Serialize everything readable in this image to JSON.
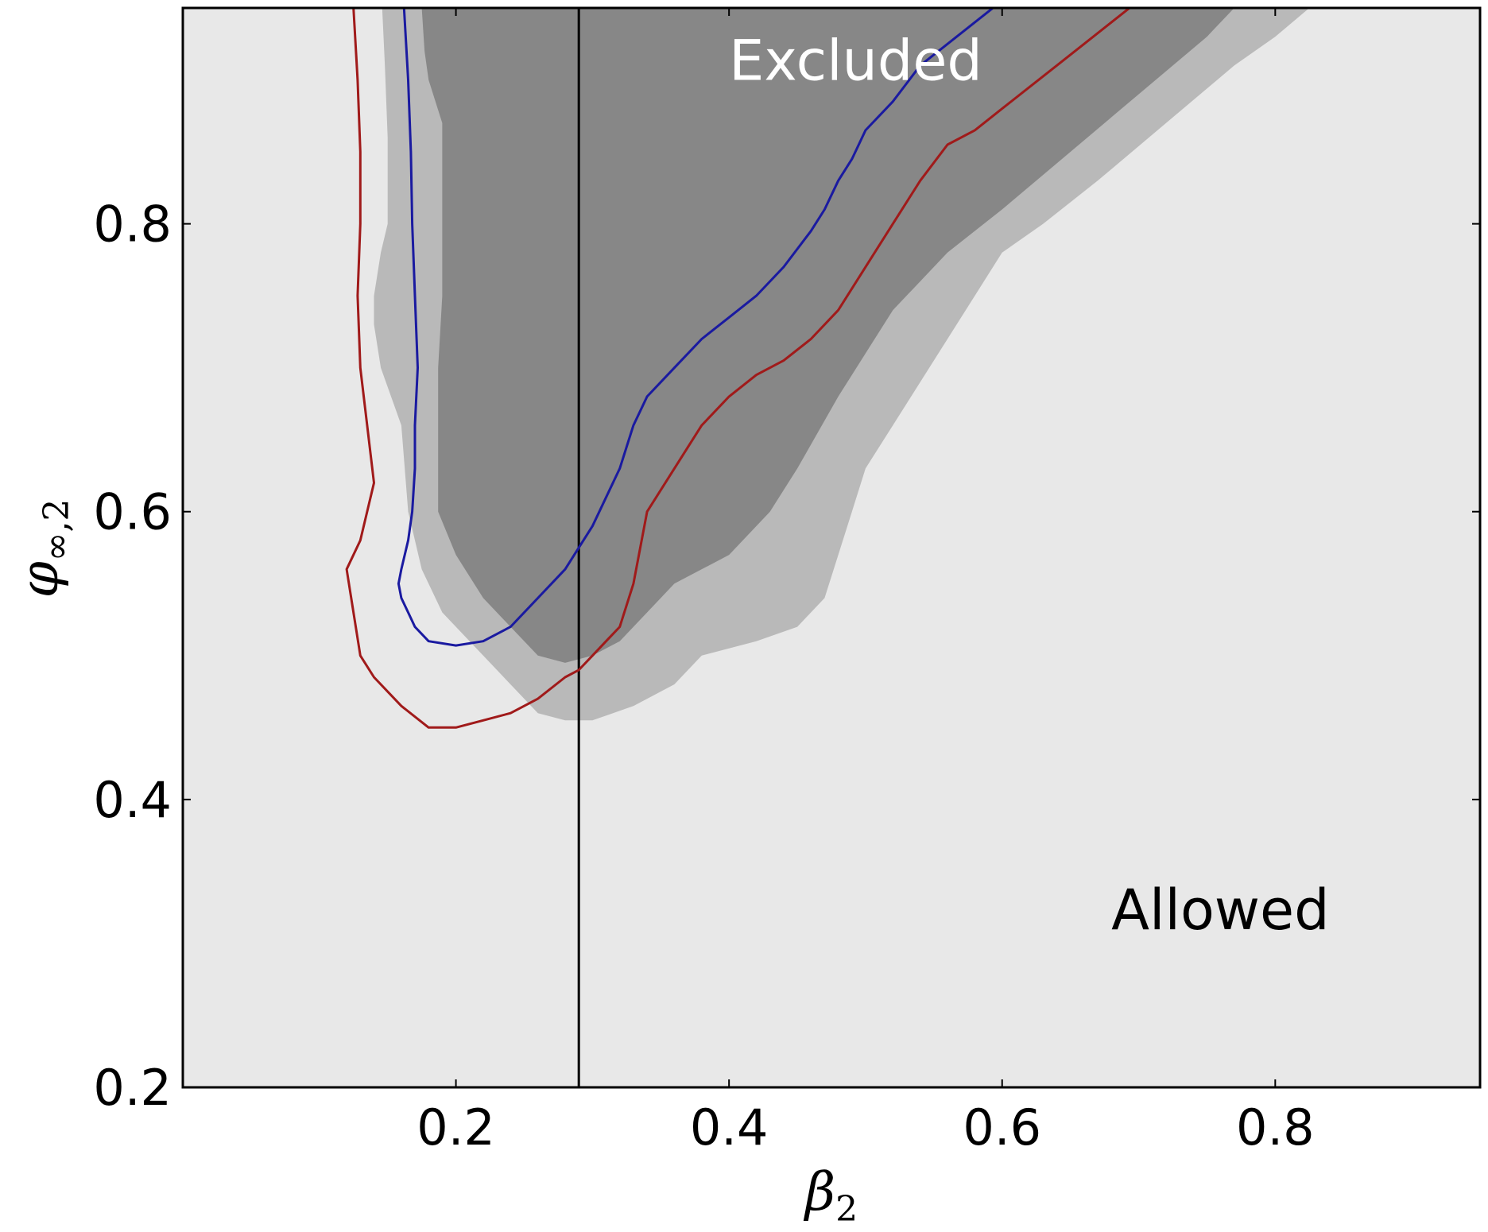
{
  "chart_data": {
    "type": "area",
    "title": "",
    "xlabel": {
      "symbol": "β",
      "subscript": "2"
    },
    "ylabel": {
      "symbol": "φ",
      "subscript": "∞,2"
    },
    "xlim": [
      0.0,
      0.95
    ],
    "ylim": [
      0.2,
      0.95
    ],
    "xticks": [
      0.2,
      0.4,
      0.6,
      0.8
    ],
    "yticks": [
      0.2,
      0.4,
      0.6,
      0.8
    ],
    "xtick_labels": [
      "0.2",
      "0.4",
      "0.6",
      "0.8"
    ],
    "ytick_labels": [
      "0.2",
      "0.4",
      "0.6",
      "0.8"
    ],
    "grid": false,
    "legend": "none",
    "colors": {
      "background": "#e8e8e8",
      "light_region": "#b9b9b9",
      "dark_region": "#878787",
      "blue_contour": "#1a1aa0",
      "red_contour": "#a01a1a",
      "vertical_line": "#000000"
    },
    "vertical_line_x": 0.29,
    "annotations": [
      {
        "text": "Excluded",
        "x": 0.4,
        "y": 0.9,
        "color": "#ffffff"
      },
      {
        "text": "Allowed",
        "x": 0.68,
        "y": 0.31,
        "color": "#000000"
      }
    ],
    "regions": [
      {
        "name": "light",
        "points": [
          [
            0.146,
            0.95
          ],
          [
            0.148,
            0.91
          ],
          [
            0.15,
            0.86
          ],
          [
            0.15,
            0.8
          ],
          [
            0.145,
            0.78
          ],
          [
            0.14,
            0.75
          ],
          [
            0.14,
            0.73
          ],
          [
            0.145,
            0.7
          ],
          [
            0.16,
            0.66
          ],
          [
            0.165,
            0.6
          ],
          [
            0.175,
            0.56
          ],
          [
            0.19,
            0.53
          ],
          [
            0.21,
            0.51
          ],
          [
            0.23,
            0.49
          ],
          [
            0.26,
            0.46
          ],
          [
            0.28,
            0.455
          ],
          [
            0.3,
            0.455
          ],
          [
            0.33,
            0.465
          ],
          [
            0.36,
            0.48
          ],
          [
            0.38,
            0.5
          ],
          [
            0.42,
            0.51
          ],
          [
            0.45,
            0.52
          ],
          [
            0.47,
            0.54
          ],
          [
            0.48,
            0.57
          ],
          [
            0.49,
            0.6
          ],
          [
            0.5,
            0.63
          ],
          [
            0.52,
            0.66
          ],
          [
            0.54,
            0.69
          ],
          [
            0.56,
            0.72
          ],
          [
            0.58,
            0.75
          ],
          [
            0.6,
            0.78
          ],
          [
            0.63,
            0.8
          ],
          [
            0.67,
            0.83
          ],
          [
            0.72,
            0.87
          ],
          [
            0.77,
            0.91
          ],
          [
            0.8,
            0.93
          ],
          [
            0.825,
            0.95
          ]
        ]
      },
      {
        "name": "dark",
        "points": [
          [
            0.175,
            0.95
          ],
          [
            0.177,
            0.92
          ],
          [
            0.18,
            0.9
          ],
          [
            0.19,
            0.87
          ],
          [
            0.19,
            0.8
          ],
          [
            0.19,
            0.75
          ],
          [
            0.187,
            0.7
          ],
          [
            0.187,
            0.65
          ],
          [
            0.187,
            0.6
          ],
          [
            0.2,
            0.57
          ],
          [
            0.22,
            0.54
          ],
          [
            0.24,
            0.52
          ],
          [
            0.26,
            0.5
          ],
          [
            0.28,
            0.495
          ],
          [
            0.3,
            0.5
          ],
          [
            0.32,
            0.51
          ],
          [
            0.34,
            0.53
          ],
          [
            0.36,
            0.55
          ],
          [
            0.4,
            0.57
          ],
          [
            0.43,
            0.6
          ],
          [
            0.45,
            0.63
          ],
          [
            0.48,
            0.68
          ],
          [
            0.5,
            0.71
          ],
          [
            0.52,
            0.74
          ],
          [
            0.54,
            0.76
          ],
          [
            0.56,
            0.78
          ],
          [
            0.6,
            0.81
          ],
          [
            0.65,
            0.85
          ],
          [
            0.7,
            0.89
          ],
          [
            0.75,
            0.93
          ],
          [
            0.77,
            0.95
          ]
        ]
      }
    ],
    "series": [
      {
        "color": "#1a1aa0",
        "x": [
          0.162,
          0.165,
          0.167,
          0.168,
          0.17,
          0.172,
          0.17,
          0.17,
          0.168,
          0.165,
          0.16,
          0.158,
          0.16,
          0.165,
          0.17,
          0.18,
          0.2,
          0.22,
          0.24,
          0.26,
          0.28,
          0.3,
          0.32,
          0.33,
          0.34,
          0.36,
          0.38,
          0.4,
          0.42,
          0.44,
          0.46,
          0.47,
          0.48,
          0.49,
          0.5,
          0.52,
          0.54,
          0.56,
          0.58,
          0.6
        ],
        "y": [
          0.95,
          0.9,
          0.85,
          0.8,
          0.75,
          0.7,
          0.66,
          0.63,
          0.6,
          0.58,
          0.56,
          0.55,
          0.54,
          0.53,
          0.52,
          0.51,
          0.507,
          0.51,
          0.52,
          0.54,
          0.56,
          0.59,
          0.63,
          0.66,
          0.68,
          0.7,
          0.72,
          0.735,
          0.75,
          0.77,
          0.795,
          0.81,
          0.83,
          0.845,
          0.865,
          0.885,
          0.91,
          0.925,
          0.94,
          0.955
        ]
      },
      {
        "color": "#a01a1a",
        "x": [
          0.125,
          0.128,
          0.13,
          0.13,
          0.128,
          0.13,
          0.135,
          0.14,
          0.135,
          0.13,
          0.12,
          0.125,
          0.13,
          0.14,
          0.16,
          0.18,
          0.2,
          0.22,
          0.24,
          0.26,
          0.28,
          0.29,
          0.3,
          0.31,
          0.32,
          0.33,
          0.34,
          0.36,
          0.38,
          0.4,
          0.42,
          0.44,
          0.46,
          0.48,
          0.5,
          0.52,
          0.54,
          0.56,
          0.58,
          0.6,
          0.62,
          0.64,
          0.66,
          0.68,
          0.7
        ],
        "y": [
          0.95,
          0.9,
          0.85,
          0.8,
          0.75,
          0.7,
          0.66,
          0.62,
          0.6,
          0.58,
          0.56,
          0.53,
          0.5,
          0.485,
          0.465,
          0.45,
          0.45,
          0.455,
          0.46,
          0.47,
          0.485,
          0.49,
          0.5,
          0.51,
          0.52,
          0.55,
          0.6,
          0.63,
          0.66,
          0.68,
          0.695,
          0.705,
          0.72,
          0.74,
          0.77,
          0.8,
          0.83,
          0.855,
          0.865,
          0.88,
          0.895,
          0.91,
          0.925,
          0.94,
          0.955
        ]
      }
    ]
  }
}
